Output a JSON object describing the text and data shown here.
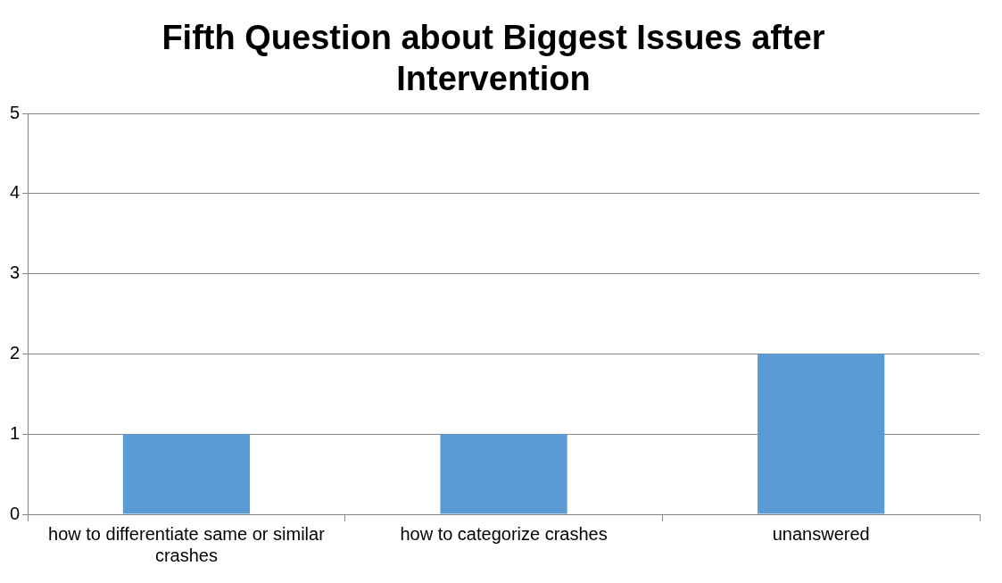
{
  "chart_data": {
    "type": "bar",
    "title": "Fifth Question about Biggest Issues after Intervention",
    "categories": [
      "how to differentiate same or similar crashes",
      "how to categorize crashes",
      "unanswered"
    ],
    "values": [
      1,
      1,
      2
    ],
    "color": "#5b9bd5",
    "ylim": [
      0,
      5
    ],
    "yticks": [
      0,
      1,
      2,
      3,
      4,
      5
    ],
    "grid": "y",
    "legend": false
  }
}
